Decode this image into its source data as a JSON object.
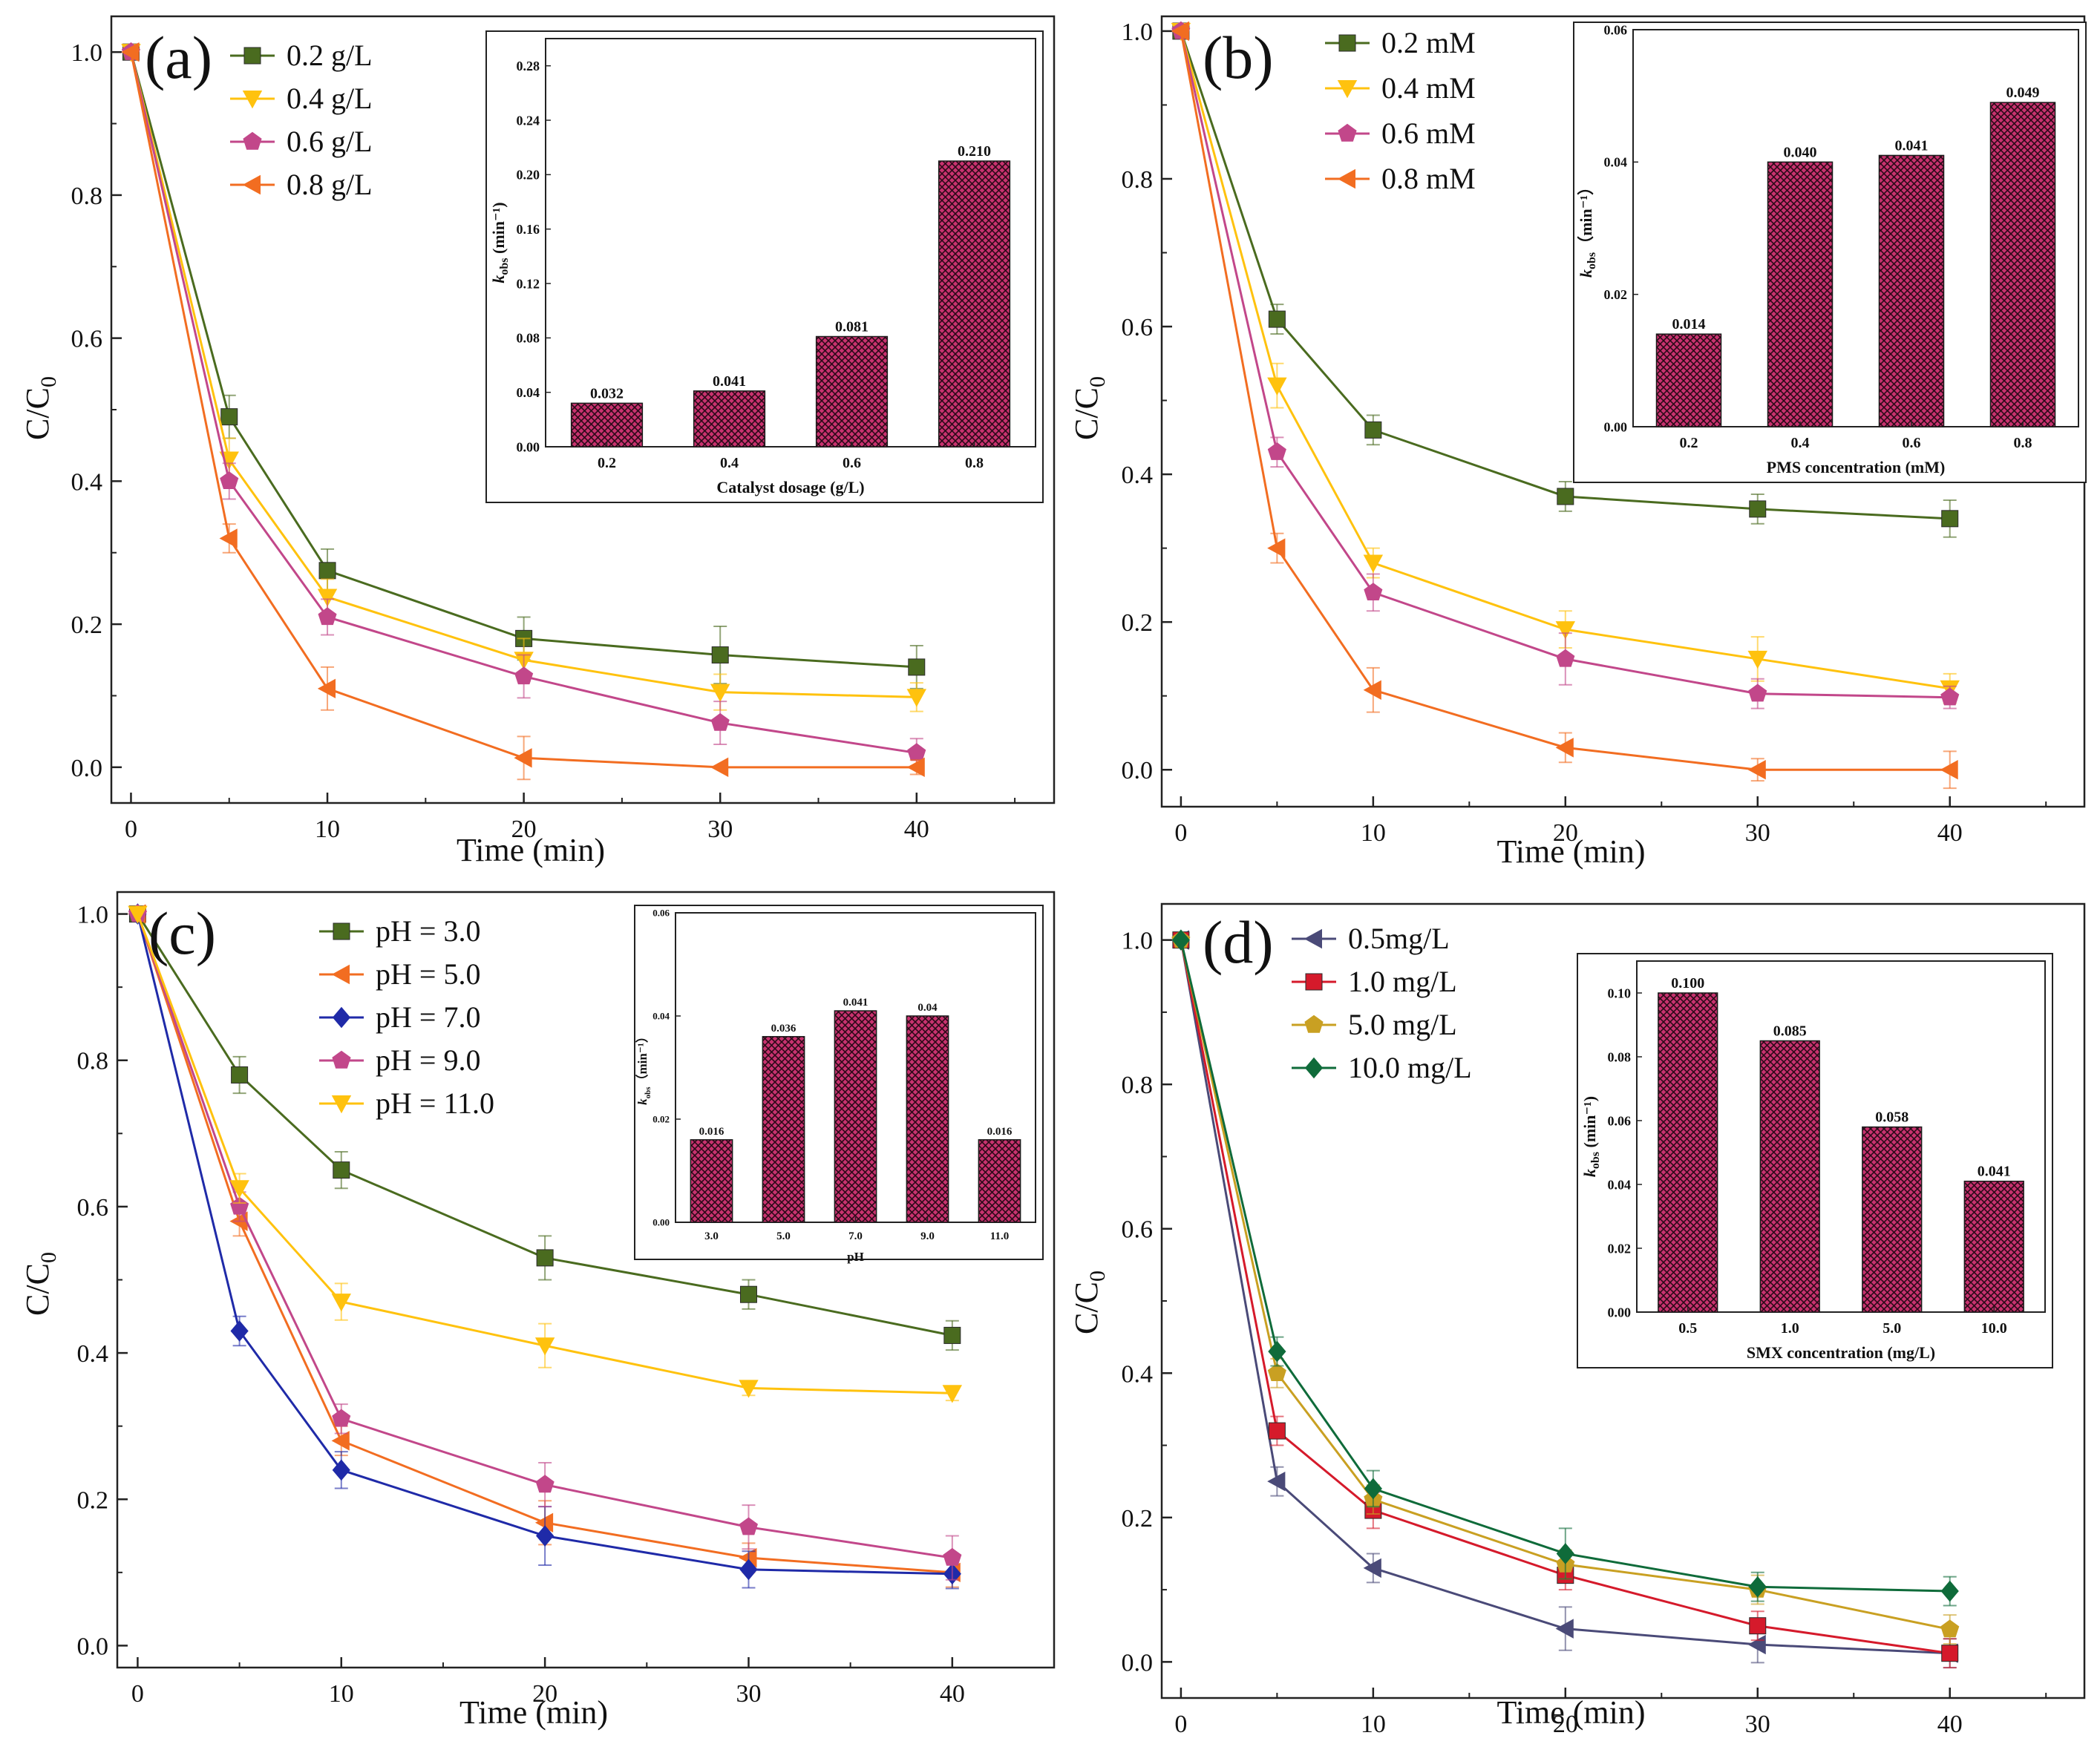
{
  "figure": {
    "panels": [
      "(a)",
      "(b)",
      "(c)",
      "(d)"
    ]
  },
  "chart_data": [
    {
      "panel": "(a)",
      "type": "line",
      "xlabel": "Time (min)",
      "ylabel": "C/C0",
      "xlim": [
        -1,
        47
      ],
      "ylim": [
        -0.05,
        1.05
      ],
      "xticks": [
        0,
        10,
        20,
        30,
        40
      ],
      "yticks": [
        0.0,
        0.2,
        0.4,
        0.6,
        0.8,
        1.0
      ],
      "x": [
        0,
        5,
        10,
        20,
        30,
        40
      ],
      "legend_position": "top-left",
      "series": [
        {
          "name": "0.2 g/L",
          "color": "#4a6b1f",
          "marker": "square",
          "values": [
            1.0,
            0.49,
            0.275,
            0.18,
            0.157,
            0.14
          ],
          "errors": [
            0,
            0.03,
            0.03,
            0.03,
            0.04,
            0.03
          ]
        },
        {
          "name": "0.4 g/L",
          "color": "#ffc20e",
          "marker": "triangle-down",
          "values": [
            1.0,
            0.43,
            0.238,
            0.15,
            0.105,
            0.098
          ],
          "errors": [
            0,
            0.03,
            0.025,
            0.03,
            0.025,
            0.02
          ]
        },
        {
          "name": "0.6 g/L",
          "color": "#c2478a",
          "marker": "pentagon",
          "values": [
            1.0,
            0.4,
            0.21,
            0.127,
            0.062,
            0.02
          ],
          "errors": [
            0,
            0.025,
            0.025,
            0.03,
            0.03,
            0.02
          ]
        },
        {
          "name": "0.8 g/L",
          "color": "#f26d21",
          "marker": "triangle-left",
          "values": [
            1.0,
            0.32,
            0.11,
            0.013,
            0.0,
            0.0
          ],
          "errors": [
            0,
            0.02,
            0.03,
            0.03,
            0.0,
            0.01
          ]
        }
      ],
      "inset": {
        "type": "bar",
        "xlabel": "Catalyst dosage (g/L)",
        "ylabel": "k_obs (min⁻¹)",
        "ylabel_main": "k",
        "ylabel_sub": "obs",
        "ylabel_unit": " (min⁻¹)",
        "categories": [
          "0.2",
          "0.4",
          "0.6",
          "0.8"
        ],
        "values": [
          0.032,
          0.041,
          0.081,
          0.21
        ],
        "value_labels": [
          "0.032",
          "0.041",
          "0.081",
          "0.210"
        ],
        "ylim": [
          0,
          0.3
        ],
        "yticks": [
          "0.00",
          "0.04",
          "0.08",
          "0.12",
          "0.16",
          "0.20",
          "0.24",
          "0.28"
        ]
      }
    },
    {
      "panel": "(b)",
      "type": "line",
      "xlabel": "Time (min)",
      "ylabel": "C/C0",
      "xlim": [
        -1,
        47
      ],
      "ylim": [
        -0.05,
        1.02
      ],
      "xticks": [
        0,
        10,
        20,
        30,
        40
      ],
      "yticks": [
        0.0,
        0.2,
        0.4,
        0.6,
        0.8,
        1.0
      ],
      "x": [
        0,
        5,
        10,
        20,
        30,
        40
      ],
      "legend_position": "top-left",
      "series": [
        {
          "name": "0.2 mM",
          "color": "#4a6b1f",
          "marker": "square",
          "values": [
            1.0,
            0.61,
            0.46,
            0.37,
            0.353,
            0.34
          ],
          "errors": [
            0,
            0.02,
            0.02,
            0.02,
            0.02,
            0.025
          ]
        },
        {
          "name": "0.4 mM",
          "color": "#ffc20e",
          "marker": "triangle-down",
          "values": [
            1.0,
            0.52,
            0.28,
            0.19,
            0.15,
            0.11
          ],
          "errors": [
            0,
            0.03,
            0.02,
            0.025,
            0.03,
            0.02
          ]
        },
        {
          "name": "0.6 mM",
          "color": "#c2478a",
          "marker": "pentagon",
          "values": [
            1.0,
            0.43,
            0.24,
            0.15,
            0.103,
            0.098
          ],
          "errors": [
            0,
            0.02,
            0.025,
            0.035,
            0.02,
            0.015
          ]
        },
        {
          "name": "0.8 mM",
          "color": "#f26d21",
          "marker": "triangle-left",
          "values": [
            1.0,
            0.3,
            0.108,
            0.03,
            0.0,
            0.0
          ],
          "errors": [
            0,
            0.02,
            0.03,
            0.02,
            0.015,
            0.025
          ]
        }
      ],
      "inset": {
        "type": "bar",
        "xlabel": "PMS concentration (mM)",
        "ylabel": "k_obs (min⁻¹)",
        "ylabel_main": "k",
        "ylabel_sub": "obs",
        "ylabel_unit": "（min⁻¹）",
        "categories": [
          "0.2",
          "0.4",
          "0.6",
          "0.8"
        ],
        "values": [
          0.014,
          0.04,
          0.041,
          0.049
        ],
        "value_labels": [
          "0.014",
          "0.040",
          "0.041",
          "0.049"
        ],
        "ylim": [
          0,
          0.06
        ],
        "yticks": [
          "0.00",
          "0.02",
          "0.04",
          "0.06"
        ]
      }
    },
    {
      "panel": "(c)",
      "type": "line",
      "xlabel": "Time (min)",
      "ylabel": "C/C0",
      "xlim": [
        -1,
        45
      ],
      "ylim": [
        -0.03,
        1.03
      ],
      "xticks": [
        0,
        10,
        20,
        30,
        40
      ],
      "yticks": [
        0.0,
        0.2,
        0.4,
        0.6,
        0.8,
        1.0
      ],
      "x": [
        0,
        5,
        10,
        20,
        30,
        40
      ],
      "legend_position": "top-center",
      "series": [
        {
          "name": "pH = 3.0",
          "color": "#4a6b1f",
          "marker": "square",
          "values": [
            1.0,
            0.78,
            0.65,
            0.53,
            0.48,
            0.424
          ],
          "errors": [
            0,
            0.025,
            0.025,
            0.03,
            0.02,
            0.02
          ]
        },
        {
          "name": "pH = 5.0",
          "color": "#f26d21",
          "marker": "triangle-left",
          "values": [
            1.0,
            0.58,
            0.28,
            0.168,
            0.12,
            0.1
          ],
          "errors": [
            0,
            0.02,
            0.02,
            0.03,
            0.02,
            0.02
          ]
        },
        {
          "name": "pH = 7.0",
          "color": "#1f2aa8",
          "marker": "diamond",
          "values": [
            1.0,
            0.43,
            0.24,
            0.15,
            0.104,
            0.098
          ],
          "errors": [
            0,
            0.02,
            0.025,
            0.04,
            0.025,
            0.02
          ]
        },
        {
          "name": "pH = 9.0",
          "color": "#c2478a",
          "marker": "pentagon",
          "values": [
            1.0,
            0.6,
            0.31,
            0.22,
            0.162,
            0.12
          ],
          "errors": [
            0,
            0.02,
            0.02,
            0.03,
            0.03,
            0.03
          ]
        },
        {
          "name": "pH = 11.0",
          "color": "#ffc20e",
          "marker": "triangle-down",
          "values": [
            1.0,
            0.625,
            0.47,
            0.41,
            0.352,
            0.345
          ],
          "errors": [
            0,
            0.02,
            0.025,
            0.03,
            0.01,
            0.01
          ]
        }
      ],
      "inset": {
        "type": "bar",
        "xlabel": "pH",
        "ylabel": "k_obs (min⁻¹)",
        "ylabel_main": "k",
        "ylabel_sub": "obs",
        "ylabel_unit": "（min⁻¹）",
        "categories": [
          "3.0",
          "5.0",
          "7.0",
          "9.0",
          "11.0"
        ],
        "values": [
          0.016,
          0.036,
          0.041,
          0.04,
          0.016
        ],
        "value_labels": [
          "0.016",
          "0.036",
          "0.041",
          "0.04",
          "0.016"
        ],
        "ylim": [
          0,
          0.06
        ],
        "yticks": [
          "0.00",
          "0.02",
          "0.04",
          "0.06"
        ]
      }
    },
    {
      "panel": "(d)",
      "type": "line",
      "xlabel": "Time (min)",
      "ylabel": "C/C0",
      "xlim": [
        -1,
        47
      ],
      "ylim": [
        -0.05,
        1.05
      ],
      "xticks": [
        0,
        10,
        20,
        30,
        40
      ],
      "yticks": [
        0.0,
        0.2,
        0.4,
        0.6,
        0.8,
        1.0
      ],
      "x": [
        0,
        5,
        10,
        20,
        30,
        40
      ],
      "legend_position": "top-left",
      "series": [
        {
          "name": "0.5mg/L",
          "color": "#4a4a78",
          "marker": "triangle-left",
          "values": [
            1.0,
            0.25,
            0.13,
            0.046,
            0.024,
            0.012
          ],
          "errors": [
            0,
            0.02,
            0.02,
            0.03,
            0.025,
            0.02
          ]
        },
        {
          "name": "1.0 mg/L",
          "color": "#d51a2b",
          "marker": "square",
          "values": [
            1.0,
            0.32,
            0.21,
            0.12,
            0.05,
            0.012
          ],
          "errors": [
            0,
            0.02,
            0.025,
            0.02,
            0.02,
            0.02
          ]
        },
        {
          "name": "5.0 mg/L",
          "color": "#c9a022",
          "marker": "pentagon",
          "values": [
            1.0,
            0.4,
            0.225,
            0.135,
            0.1,
            0.045
          ],
          "errors": [
            0,
            0.02,
            0.02,
            0.02,
            0.02,
            0.02
          ]
        },
        {
          "name": "10.0 mg/L",
          "color": "#0f6b3a",
          "marker": "diamond",
          "values": [
            1.0,
            0.43,
            0.24,
            0.15,
            0.104,
            0.098
          ],
          "errors": [
            0,
            0.02,
            0.025,
            0.035,
            0.02,
            0.02
          ]
        }
      ],
      "inset": {
        "type": "bar",
        "xlabel": "SMX concentration (mg/L)",
        "ylabel": "k_obs (min⁻¹)",
        "ylabel_main": "k",
        "ylabel_sub": "obs",
        "ylabel_unit": " (min⁻¹)",
        "categories": [
          "0.5",
          "1.0",
          "5.0",
          "10.0"
        ],
        "values": [
          0.1,
          0.085,
          0.058,
          0.041
        ],
        "value_labels": [
          "0.100",
          "0.085",
          "0.058",
          "0.041"
        ],
        "ylim": [
          0,
          0.11
        ],
        "yticks": [
          "0.00",
          "0.02",
          "0.04",
          "0.06",
          "0.08",
          "0.10"
        ]
      }
    }
  ]
}
